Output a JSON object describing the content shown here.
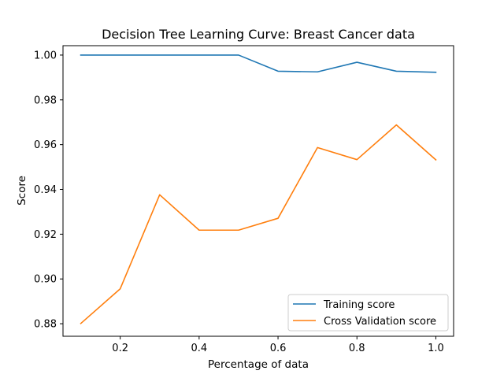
{
  "chart_data": {
    "type": "line",
    "title": "Decision Tree Learning Curve: Breast Cancer data",
    "xlabel": "Percentage of data",
    "ylabel": "Score",
    "xlim": [
      0.055,
      1.045
    ],
    "ylim": [
      0.8744,
      1.0042
    ],
    "xticks": [
      0.2,
      0.4,
      0.6,
      0.8,
      1.0
    ],
    "xtick_labels": [
      "0.2",
      "0.4",
      "0.6",
      "0.8",
      "1.0"
    ],
    "yticks": [
      0.88,
      0.9,
      0.92,
      0.94,
      0.96,
      0.98,
      1.0
    ],
    "ytick_labels": [
      "0.88",
      "0.90",
      "0.92",
      "0.94",
      "0.96",
      "0.98",
      "1.00"
    ],
    "grid": false,
    "legend_position": "bottom-right",
    "x": [
      0.1,
      0.2,
      0.3,
      0.4,
      0.5,
      0.6,
      0.7,
      0.8,
      0.9,
      1.0
    ],
    "series": [
      {
        "name": "Training score",
        "color": "#1f77b4",
        "values": [
          1.0,
          1.0,
          1.0,
          1.0,
          1.0,
          0.9928,
          0.9925,
          0.9968,
          0.9928,
          0.9923
        ]
      },
      {
        "name": "Cross Validation score",
        "color": "#ff7f0e",
        "values": [
          0.8801,
          0.8956,
          0.9376,
          0.9218,
          0.9218,
          0.9271,
          0.9587,
          0.9533,
          0.9688,
          0.9532
        ]
      }
    ]
  }
}
